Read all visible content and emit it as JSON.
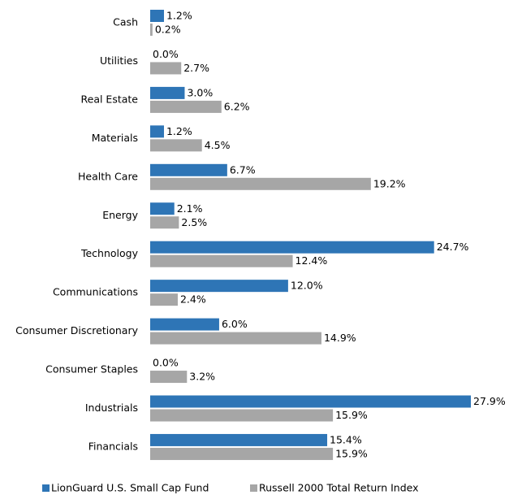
{
  "chart_data": {
    "type": "bar",
    "orientation": "horizontal",
    "categories": [
      "Cash",
      "Utilities",
      "Real Estate",
      "Materials",
      "Health Care",
      "Energy",
      "Technology",
      "Communications",
      "Consumer Discretionary",
      "Consumer Staples",
      "Industrials",
      "Financials"
    ],
    "series": [
      {
        "name": "LionGuard U.S. Small Cap Fund",
        "color": "#2e75b6",
        "values": [
          1.2,
          0.0,
          3.0,
          1.2,
          6.7,
          2.1,
          24.7,
          12.0,
          6.0,
          0.0,
          27.9,
          15.4
        ],
        "value_labels": [
          "1.2%",
          "0.0%",
          "3.0%",
          "1.2%",
          "6.7%",
          "2.1%",
          "24.7%",
          "12.0%",
          "6.0%",
          "0.0%",
          "27.9%",
          "15.4%"
        ]
      },
      {
        "name": "Russell 2000 Total Return Index",
        "color": "#a6a6a6",
        "values": [
          0.2,
          2.7,
          6.2,
          4.5,
          19.2,
          2.5,
          12.4,
          2.4,
          14.9,
          3.2,
          15.9,
          15.9
        ],
        "value_labels": [
          "0.2%",
          "2.7%",
          "6.2%",
          "4.5%",
          "19.2%",
          "2.5%",
          "12.4%",
          "2.4%",
          "14.9%",
          "3.2%",
          "15.9%",
          "15.9%"
        ]
      }
    ],
    "legend": "bottom"
  }
}
